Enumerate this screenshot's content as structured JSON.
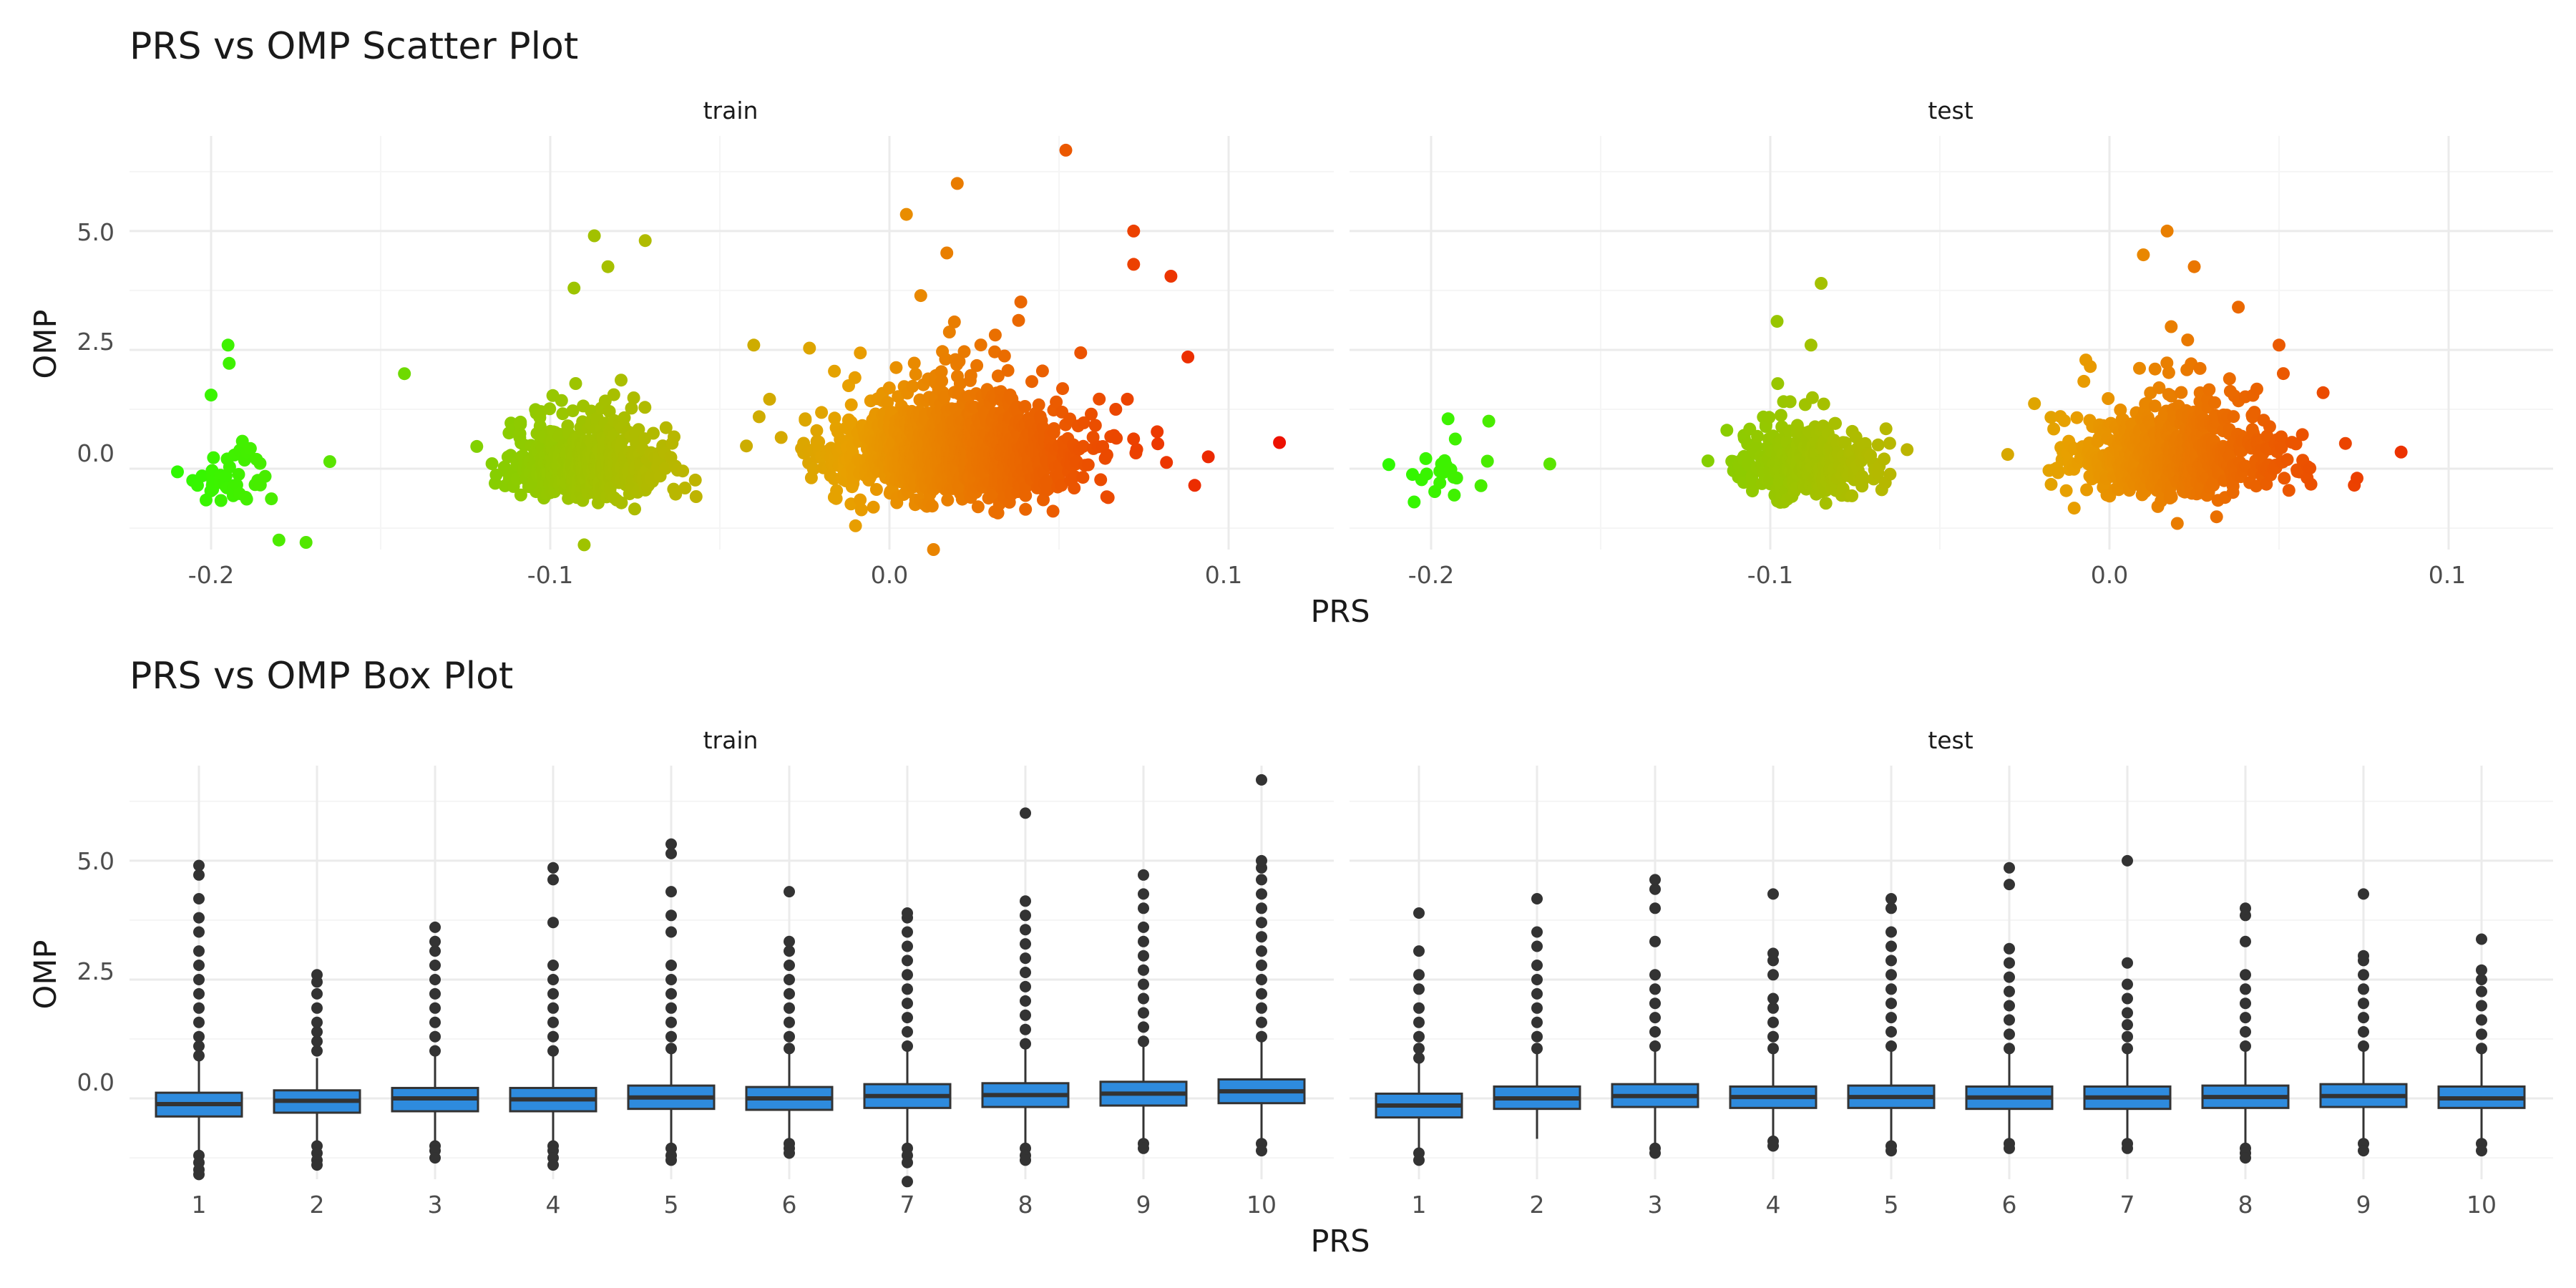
{
  "chart_data": [
    {
      "type": "scatter",
      "title": "PRS vs OMP Scatter Plot",
      "xlabel": "PRS",
      "ylabel": "OMP",
      "xlim": [
        -0.225,
        0.13
      ],
      "ylim": [
        -1.7,
        7.0
      ],
      "x_ticks": [
        "-0.2",
        "-0.1",
        "0.0",
        "0.1"
      ],
      "y_ticks": [
        "0.0",
        "2.5",
        "5.0"
      ],
      "grid": true,
      "color_encoding": "points colored by PRS, green (low) to red (high)",
      "panels": [
        {
          "label": "train",
          "clusters": [
            {
              "x_center": -0.195,
              "x_spread": 0.007,
              "y_center": -0.3,
              "y_spread": 0.35,
              "count": 45
            },
            {
              "x_center": -0.09,
              "x_spread": 0.011,
              "y_center": -0.1,
              "y_spread": 0.45,
              "count": 700
            },
            {
              "x_center": 0.02,
              "x_spread": 0.018,
              "y_center": 0.1,
              "y_spread": 0.6,
              "count": 1400
            }
          ],
          "outliers": [
            {
              "x": -0.195,
              "y": 2.6
            },
            {
              "x": -0.2,
              "y": 1.55
            },
            {
              "x": -0.143,
              "y": 2.0
            },
            {
              "x": -0.18,
              "y": -1.5
            },
            {
              "x": -0.172,
              "y": -1.55
            },
            {
              "x": -0.165,
              "y": 0.15
            },
            {
              "x": -0.087,
              "y": 4.9
            },
            {
              "x": -0.072,
              "y": 4.8
            },
            {
              "x": -0.093,
              "y": 3.8
            },
            {
              "x": -0.083,
              "y": 4.25
            },
            {
              "x": -0.09,
              "y": -1.6
            },
            {
              "x": -0.04,
              "y": 2.6
            },
            {
              "x": 0.052,
              "y": 6.7
            },
            {
              "x": 0.02,
              "y": 6.0
            },
            {
              "x": 0.005,
              "y": 5.35
            },
            {
              "x": 0.072,
              "y": 5.0
            },
            {
              "x": 0.072,
              "y": 4.3
            },
            {
              "x": 0.083,
              "y": 4.05
            },
            {
              "x": 0.088,
              "y": 2.35
            },
            {
              "x": 0.094,
              "y": 0.25
            },
            {
              "x": 0.115,
              "y": 0.55
            },
            {
              "x": 0.013,
              "y": -1.7
            },
            {
              "x": 0.09,
              "y": -0.35
            },
            {
              "x": -0.01,
              "y": -1.2
            }
          ]
        },
        {
          "label": "test",
          "clusters": [
            {
              "x_center": -0.195,
              "x_spread": 0.006,
              "y_center": -0.3,
              "y_spread": 0.3,
              "count": 22
            },
            {
              "x_center": -0.09,
              "x_spread": 0.01,
              "y_center": -0.1,
              "y_spread": 0.4,
              "count": 350
            },
            {
              "x_center": 0.02,
              "x_spread": 0.016,
              "y_center": 0.1,
              "y_spread": 0.55,
              "count": 700
            }
          ],
          "outliers": [
            {
              "x": -0.195,
              "y": 1.05
            },
            {
              "x": -0.183,
              "y": 1.0
            },
            {
              "x": -0.165,
              "y": 0.1
            },
            {
              "x": -0.098,
              "y": 3.1
            },
            {
              "x": -0.085,
              "y": 3.9
            },
            {
              "x": -0.088,
              "y": 2.6
            },
            {
              "x": -0.03,
              "y": 0.3
            },
            {
              "x": 0.01,
              "y": 4.5
            },
            {
              "x": 0.017,
              "y": 5.0
            },
            {
              "x": 0.025,
              "y": 4.25
            },
            {
              "x": 0.038,
              "y": 3.4
            },
            {
              "x": 0.05,
              "y": 2.6
            },
            {
              "x": 0.063,
              "y": 1.6
            },
            {
              "x": 0.086,
              "y": 0.35
            },
            {
              "x": 0.073,
              "y": -0.2
            },
            {
              "x": 0.02,
              "y": -1.15
            }
          ]
        }
      ]
    },
    {
      "type": "box",
      "title": "PRS vs OMP Box Plot",
      "xlabel": "PRS",
      "ylabel": "OMP",
      "ylim": [
        -1.7,
        7.0
      ],
      "categories": [
        "1",
        "2",
        "3",
        "4",
        "5",
        "6",
        "7",
        "8",
        "9",
        "10"
      ],
      "y_ticks": [
        "0.0",
        "2.5",
        "5.0"
      ],
      "box_color": "#2E8BDE",
      "panels": [
        {
          "label": "train",
          "boxes": [
            {
              "q1": -0.38,
              "median": -0.12,
              "q3": 0.12,
              "whisker_low": -1.1,
              "whisker_high": 0.8,
              "outliers_high": [
                0.9,
                1.1,
                1.3,
                1.6,
                1.9,
                2.2,
                2.5,
                2.8,
                3.1,
                3.5,
                3.8,
                4.2,
                4.7,
                4.9
              ],
              "outliers_low": [
                -1.2,
                -1.35,
                -1.5,
                -1.6
              ]
            },
            {
              "q1": -0.3,
              "median": -0.05,
              "q3": 0.17,
              "whisker_low": -0.95,
              "whisker_high": 0.85,
              "outliers_high": [
                1.0,
                1.2,
                1.4,
                1.6,
                1.9,
                2.2,
                2.45,
                2.6
              ],
              "outliers_low": [
                -1.0,
                -1.15,
                -1.3,
                -1.4
              ]
            },
            {
              "q1": -0.27,
              "median": 0.0,
              "q3": 0.22,
              "whisker_low": -0.95,
              "whisker_high": 0.9,
              "outliers_high": [
                1.0,
                1.3,
                1.6,
                1.9,
                2.2,
                2.5,
                2.8,
                3.1,
                3.3,
                3.6
              ],
              "outliers_low": [
                -1.0,
                -1.1,
                -1.25
              ]
            },
            {
              "q1": -0.27,
              "median": -0.02,
              "q3": 0.22,
              "whisker_low": -0.95,
              "whisker_high": 0.9,
              "outliers_high": [
                1.0,
                1.3,
                1.6,
                1.9,
                2.2,
                2.5,
                2.8,
                3.7,
                4.6,
                4.85
              ],
              "outliers_low": [
                -1.0,
                -1.1,
                -1.25,
                -1.4
              ]
            },
            {
              "q1": -0.22,
              "median": 0.02,
              "q3": 0.27,
              "whisker_low": -0.95,
              "whisker_high": 0.95,
              "outliers_high": [
                1.05,
                1.3,
                1.6,
                1.9,
                2.2,
                2.5,
                2.8,
                3.5,
                3.85,
                4.35,
                5.15,
                5.35
              ],
              "outliers_low": [
                -1.05,
                -1.2,
                -1.3
              ]
            },
            {
              "q1": -0.24,
              "median": 0.0,
              "q3": 0.24,
              "whisker_low": -0.9,
              "whisker_high": 0.95,
              "outliers_high": [
                1.05,
                1.3,
                1.6,
                1.9,
                2.2,
                2.5,
                2.8,
                3.1,
                3.3,
                4.35
              ],
              "outliers_low": [
                -0.95,
                -1.05,
                -1.15
              ]
            },
            {
              "q1": -0.2,
              "median": 0.05,
              "q3": 0.3,
              "whisker_low": -0.95,
              "whisker_high": 1.0,
              "outliers_high": [
                1.1,
                1.4,
                1.7,
                2.0,
                2.3,
                2.6,
                2.9,
                3.2,
                3.5,
                3.8,
                3.9
              ],
              "outliers_low": [
                -1.05,
                -1.2,
                -1.35,
                -1.75
              ]
            },
            {
              "q1": -0.18,
              "median": 0.07,
              "q3": 0.32,
              "whisker_low": -0.95,
              "whisker_high": 1.05,
              "outliers_high": [
                1.15,
                1.45,
                1.75,
                2.05,
                2.35,
                2.65,
                2.95,
                3.25,
                3.55,
                3.85,
                4.15,
                6.0
              ],
              "outliers_low": [
                -1.05,
                -1.2,
                -1.3
              ]
            },
            {
              "q1": -0.15,
              "median": 0.1,
              "q3": 0.35,
              "whisker_low": -0.9,
              "whisker_high": 1.1,
              "outliers_high": [
                1.2,
                1.5,
                1.8,
                2.1,
                2.4,
                2.7,
                3.0,
                3.3,
                3.6,
                4.0,
                4.3,
                4.7
              ],
              "outliers_low": [
                -0.95,
                -1.05
              ]
            },
            {
              "q1": -0.1,
              "median": 0.15,
              "q3": 0.4,
              "whisker_low": -0.85,
              "whisker_high": 1.2,
              "outliers_high": [
                1.3,
                1.6,
                1.9,
                2.2,
                2.5,
                2.8,
                3.1,
                3.4,
                3.7,
                4.0,
                4.3,
                4.6,
                4.85,
                5.0,
                6.7
              ],
              "outliers_low": [
                -0.95,
                -1.1
              ]
            }
          ]
        },
        {
          "label": "test",
          "boxes": [
            {
              "q1": -0.4,
              "median": -0.15,
              "q3": 0.1,
              "whisker_low": -1.05,
              "whisker_high": 0.75,
              "outliers_high": [
                0.85,
                1.05,
                1.3,
                1.6,
                1.9,
                2.3,
                2.6,
                3.1,
                3.9
              ],
              "outliers_low": [
                -1.15,
                -1.3
              ]
            },
            {
              "q1": -0.22,
              "median": 0.0,
              "q3": 0.25,
              "whisker_low": -0.85,
              "whisker_high": 0.95,
              "outliers_high": [
                1.05,
                1.3,
                1.6,
                1.9,
                2.2,
                2.5,
                2.8,
                3.2,
                3.5,
                4.2
              ],
              "outliers_low": []
            },
            {
              "q1": -0.18,
              "median": 0.05,
              "q3": 0.3,
              "whisker_low": -0.95,
              "whisker_high": 1.0,
              "outliers_high": [
                1.1,
                1.4,
                1.7,
                2.0,
                2.3,
                2.6,
                3.3,
                4.0,
                4.4,
                4.6
              ],
              "outliers_low": [
                -1.05,
                -1.15
              ]
            },
            {
              "q1": -0.2,
              "median": 0.03,
              "q3": 0.25,
              "whisker_low": -0.85,
              "whisker_high": 0.95,
              "outliers_high": [
                1.05,
                1.3,
                1.6,
                1.9,
                2.1,
                2.6,
                2.9,
                3.05,
                4.3
              ],
              "outliers_low": [
                -0.9,
                -1.0
              ]
            },
            {
              "q1": -0.2,
              "median": 0.03,
              "q3": 0.27,
              "whisker_low": -0.95,
              "whisker_high": 1.0,
              "outliers_high": [
                1.1,
                1.4,
                1.7,
                2.0,
                2.3,
                2.6,
                2.9,
                3.2,
                3.5,
                4.0,
                4.2
              ],
              "outliers_low": [
                -1.0,
                -1.1
              ]
            },
            {
              "q1": -0.22,
              "median": 0.02,
              "q3": 0.25,
              "whisker_low": -0.9,
              "whisker_high": 0.95,
              "outliers_high": [
                1.05,
                1.35,
                1.65,
                1.95,
                2.25,
                2.55,
                2.85,
                3.15,
                4.5,
                4.85
              ],
              "outliers_low": [
                -0.95,
                -1.05
              ]
            },
            {
              "q1": -0.22,
              "median": 0.02,
              "q3": 0.25,
              "whisker_low": -0.9,
              "whisker_high": 0.95,
              "outliers_high": [
                1.05,
                1.3,
                1.55,
                1.8,
                2.1,
                2.4,
                2.85,
                5.0
              ],
              "outliers_low": [
                -0.95,
                -1.05
              ]
            },
            {
              "q1": -0.2,
              "median": 0.03,
              "q3": 0.27,
              "whisker_low": -0.95,
              "whisker_high": 1.0,
              "outliers_high": [
                1.1,
                1.4,
                1.7,
                2.0,
                2.3,
                2.6,
                3.3,
                3.85,
                4.0
              ],
              "outliers_low": [
                -1.05,
                -1.15,
                -1.25
              ]
            },
            {
              "q1": -0.18,
              "median": 0.05,
              "q3": 0.3,
              "whisker_low": -0.9,
              "whisker_high": 1.0,
              "outliers_high": [
                1.1,
                1.4,
                1.7,
                2.0,
                2.3,
                2.6,
                2.9,
                3.0,
                4.3
              ],
              "outliers_low": [
                -0.95,
                -1.1
              ]
            },
            {
              "q1": -0.2,
              "median": 0.0,
              "q3": 0.25,
              "whisker_low": -0.9,
              "whisker_high": 0.95,
              "outliers_high": [
                1.05,
                1.35,
                1.65,
                1.95,
                2.25,
                2.5,
                2.7,
                3.35
              ],
              "outliers_low": [
                -0.95,
                -1.1
              ]
            }
          ]
        }
      ]
    }
  ],
  "colors": {
    "scatter_low": "#22FF00",
    "scatter_mid": "#E8A000",
    "scatter_high": "#EE0000",
    "box_fill": "#2E8BDE",
    "box_stroke": "#333333",
    "outlier": "#333333",
    "grid_major": "#EBEBEB",
    "grid_minor": "#F5F5F5",
    "text_dark": "#1A1A1A",
    "tick_text": "#4D4D4D"
  }
}
